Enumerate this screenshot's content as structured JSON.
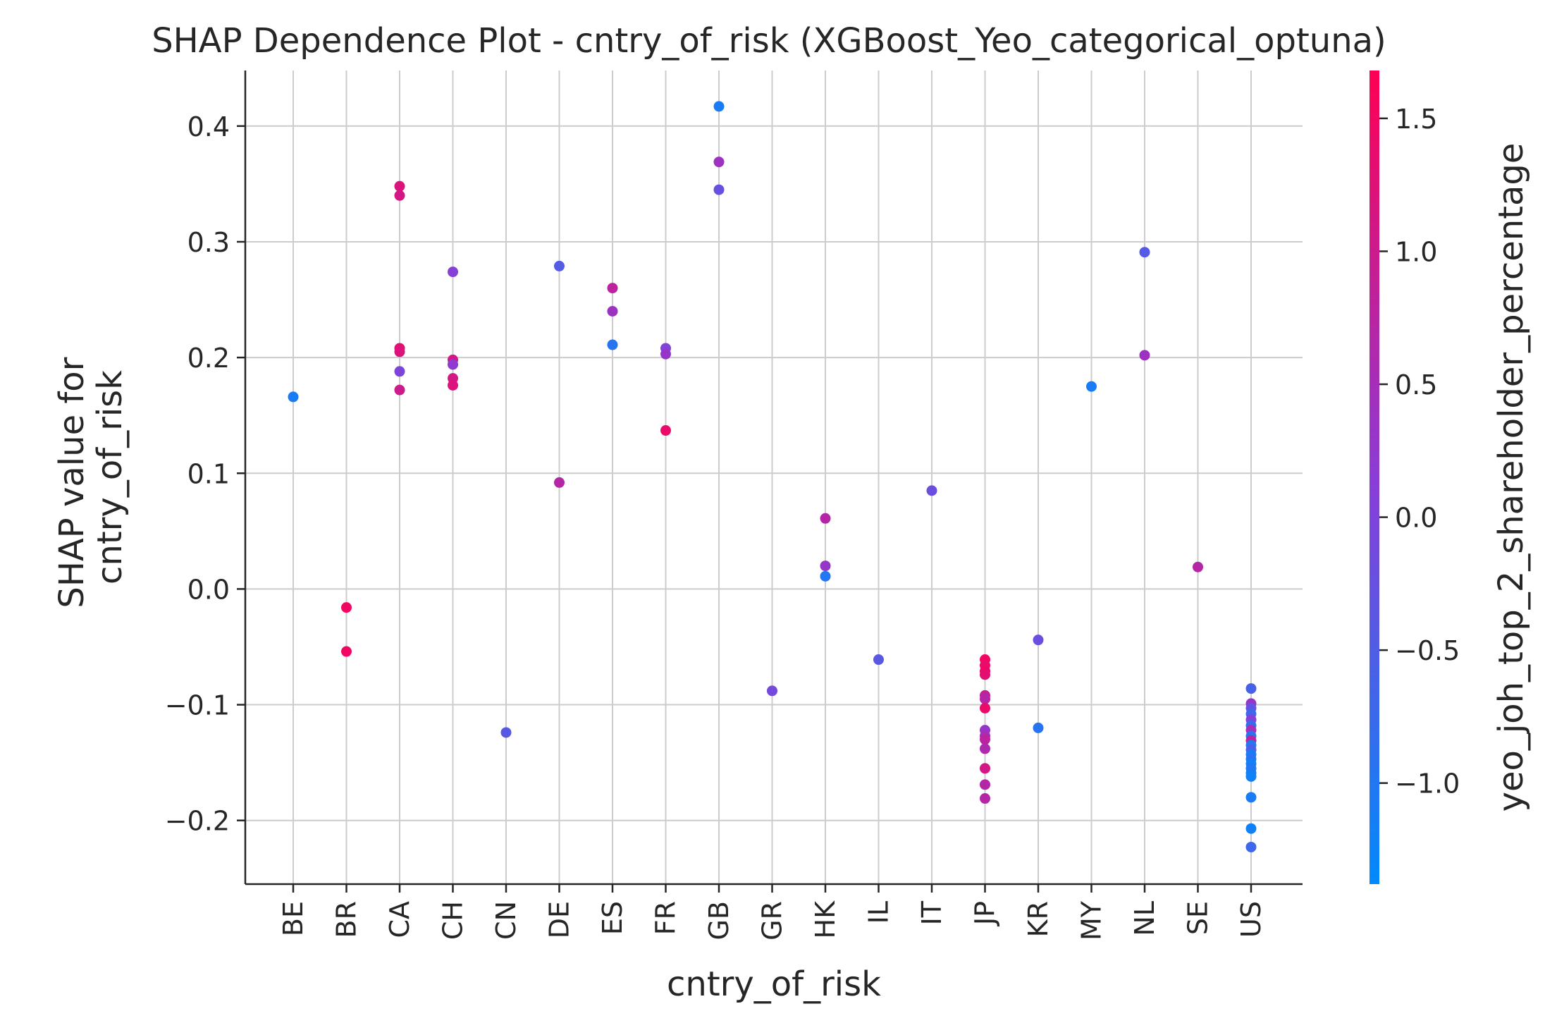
{
  "chart_data": {
    "type": "scatter",
    "title": "SHAP Dependence Plot - cntry_of_risk (XGBoost_Yeo_categorical_optuna)",
    "xlabel": "cntry_of_risk",
    "ylabel_lines": [
      "SHAP value for",
      "cntry_of_risk"
    ],
    "categories": [
      "BE",
      "BR",
      "CA",
      "CH",
      "CN",
      "DE",
      "ES",
      "FR",
      "GB",
      "GR",
      "HK",
      "IL",
      "IT",
      "JP",
      "KR",
      "MY",
      "NL",
      "SE",
      "US"
    ],
    "ylim": [
      -0.255,
      0.448
    ],
    "yticks": [
      -0.2,
      -0.1,
      0.0,
      0.1,
      0.2,
      0.3,
      0.4
    ],
    "ytick_labels": [
      "−0.2",
      "−0.1",
      "0.0",
      "0.1",
      "0.2",
      "0.3",
      "0.4"
    ],
    "grid": true,
    "colorbar": {
      "label": "yeo_joh_top_2_shareholder_percentage",
      "range": [
        -1.38,
        1.68
      ],
      "ticks": [
        -1.0,
        -0.5,
        0.0,
        0.5,
        1.0,
        1.5
      ],
      "tick_labels": [
        "−1.0",
        "−0.5",
        "0.0",
        "0.5",
        "1.0",
        "1.5"
      ],
      "color_low": "#008afb",
      "color_mid": "#8b3cd6",
      "color_high": "#ff0052"
    },
    "points": [
      {
        "x": "BE",
        "y": 0.166,
        "c": -1.1
      },
      {
        "x": "BR",
        "y": -0.016,
        "c": 1.5
      },
      {
        "x": "BR",
        "y": -0.054,
        "c": 1.5
      },
      {
        "x": "CA",
        "y": 0.348,
        "c": 1.2
      },
      {
        "x": "CA",
        "y": 0.34,
        "c": 1.1
      },
      {
        "x": "CA",
        "y": 0.208,
        "c": 1.3
      },
      {
        "x": "CA",
        "y": 0.205,
        "c": 1.2
      },
      {
        "x": "CA",
        "y": 0.188,
        "c": 0.0
      },
      {
        "x": "CA",
        "y": 0.172,
        "c": 1.0
      },
      {
        "x": "CH",
        "y": 0.274,
        "c": 0.1
      },
      {
        "x": "CH",
        "y": 0.198,
        "c": 1.1
      },
      {
        "x": "CH",
        "y": 0.194,
        "c": 0.2
      },
      {
        "x": "CH",
        "y": 0.182,
        "c": 1.1
      },
      {
        "x": "CH",
        "y": 0.176,
        "c": 1.2
      },
      {
        "x": "CN",
        "y": -0.124,
        "c": -0.4
      },
      {
        "x": "DE",
        "y": 0.279,
        "c": -0.45
      },
      {
        "x": "DE",
        "y": 0.092,
        "c": 0.7
      },
      {
        "x": "ES",
        "y": 0.26,
        "c": 0.8
      },
      {
        "x": "ES",
        "y": 0.24,
        "c": 0.4
      },
      {
        "x": "ES",
        "y": 0.211,
        "c": -0.95
      },
      {
        "x": "FR",
        "y": 0.208,
        "c": 0.05
      },
      {
        "x": "FR",
        "y": 0.203,
        "c": 0.3
      },
      {
        "x": "FR",
        "y": 0.137,
        "c": 1.4
      },
      {
        "x": "GB",
        "y": 0.417,
        "c": -1.1
      },
      {
        "x": "GB",
        "y": 0.369,
        "c": 0.4
      },
      {
        "x": "GB",
        "y": 0.345,
        "c": -0.25
      },
      {
        "x": "GR",
        "y": -0.088,
        "c": -0.1
      },
      {
        "x": "HK",
        "y": 0.061,
        "c": 0.7
      },
      {
        "x": "HK",
        "y": 0.02,
        "c": 0.3
      },
      {
        "x": "HK",
        "y": 0.011,
        "c": -1.0
      },
      {
        "x": "IL",
        "y": -0.061,
        "c": -0.4
      },
      {
        "x": "IT",
        "y": 0.085,
        "c": -0.2
      },
      {
        "x": "JP",
        "y": -0.061,
        "c": 1.5
      },
      {
        "x": "JP",
        "y": -0.066,
        "c": 1.4
      },
      {
        "x": "JP",
        "y": -0.071,
        "c": 1.5
      },
      {
        "x": "JP",
        "y": -0.074,
        "c": 1.3
      },
      {
        "x": "JP",
        "y": -0.092,
        "c": 0.9
      },
      {
        "x": "JP",
        "y": -0.095,
        "c": 0.7
      },
      {
        "x": "JP",
        "y": -0.103,
        "c": 1.4
      },
      {
        "x": "JP",
        "y": -0.122,
        "c": 0.3
      },
      {
        "x": "JP",
        "y": -0.127,
        "c": 0.5
      },
      {
        "x": "JP",
        "y": -0.13,
        "c": 0.8
      },
      {
        "x": "JP",
        "y": -0.138,
        "c": 0.6
      },
      {
        "x": "JP",
        "y": -0.155,
        "c": 1.1
      },
      {
        "x": "JP",
        "y": -0.169,
        "c": 0.7
      },
      {
        "x": "JP",
        "y": -0.181,
        "c": 0.7
      },
      {
        "x": "KR",
        "y": -0.044,
        "c": -0.2
      },
      {
        "x": "KR",
        "y": -0.12,
        "c": -0.95
      },
      {
        "x": "MY",
        "y": 0.175,
        "c": -1.1
      },
      {
        "x": "NL",
        "y": 0.291,
        "c": -0.45
      },
      {
        "x": "NL",
        "y": 0.202,
        "c": 0.4
      },
      {
        "x": "SE",
        "y": 0.019,
        "c": 0.7
      },
      {
        "x": "US",
        "y": -0.086,
        "c": -0.6
      },
      {
        "x": "US",
        "y": -0.099,
        "c": 0.3
      },
      {
        "x": "US",
        "y": -0.103,
        "c": -0.3
      },
      {
        "x": "US",
        "y": -0.108,
        "c": -0.7
      },
      {
        "x": "US",
        "y": -0.113,
        "c": 0.1
      },
      {
        "x": "US",
        "y": -0.118,
        "c": -0.8
      },
      {
        "x": "US",
        "y": -0.122,
        "c": 0.5
      },
      {
        "x": "US",
        "y": -0.127,
        "c": -0.9
      },
      {
        "x": "US",
        "y": -0.131,
        "c": 0.8
      },
      {
        "x": "US",
        "y": -0.135,
        "c": -1.0
      },
      {
        "x": "US",
        "y": -0.139,
        "c": -0.5
      },
      {
        "x": "US",
        "y": -0.143,
        "c": -1.1
      },
      {
        "x": "US",
        "y": -0.147,
        "c": -0.9
      },
      {
        "x": "US",
        "y": -0.151,
        "c": -1.2
      },
      {
        "x": "US",
        "y": -0.155,
        "c": -1.0
      },
      {
        "x": "US",
        "y": -0.159,
        "c": -1.1
      },
      {
        "x": "US",
        "y": -0.162,
        "c": -1.2
      },
      {
        "x": "US",
        "y": -0.18,
        "c": -1.1
      },
      {
        "x": "US",
        "y": -0.207,
        "c": -1.2
      },
      {
        "x": "US",
        "y": -0.223,
        "c": -0.7
      }
    ]
  }
}
